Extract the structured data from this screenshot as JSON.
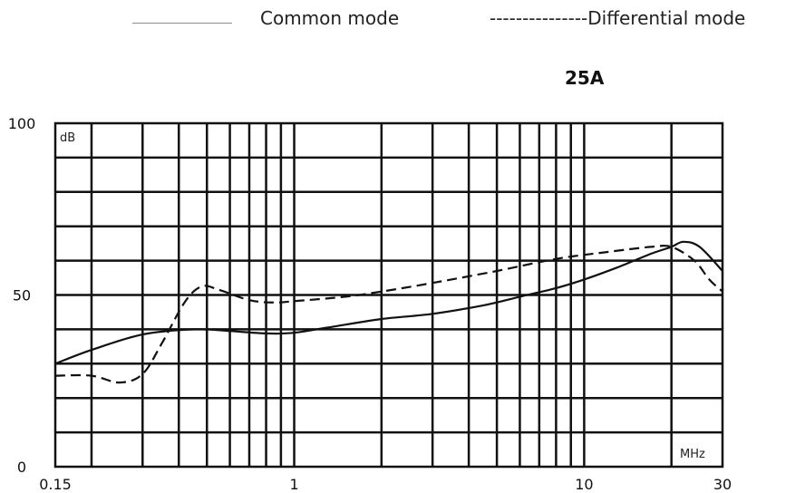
{
  "legend": {
    "common_label": "Common mode",
    "differential_label": "---------------Differential mode"
  },
  "subtitle": "25A",
  "chart_data": {
    "type": "line",
    "title": "25A",
    "x_scale": "log",
    "xlim": [
      0.15,
      30
    ],
    "ylim": [
      0,
      100
    ],
    "x_ticks": [
      0.15,
      1,
      10,
      30
    ],
    "x_tick_labels": [
      "0.15",
      "1",
      "10",
      "30"
    ],
    "y_ticks": [
      0,
      50,
      100
    ],
    "y_tick_labels": [
      "0",
      "50",
      "100"
    ],
    "y_unit": "dB",
    "x_unit": "MHz",
    "grid": true,
    "legend_position": "top",
    "series": [
      {
        "name": "Common mode",
        "style": "solid",
        "color": "#111111",
        "x": [
          0.15,
          0.2,
          0.3,
          0.45,
          0.6,
          0.8,
          1.0,
          1.3,
          2.0,
          3.0,
          4.5,
          6.0,
          8.0,
          10,
          13,
          17,
          20,
          22,
          25,
          30
        ],
        "y": [
          30,
          34,
          38.5,
          40,
          39.5,
          38.8,
          39,
          40.5,
          43,
          44.5,
          47,
          49.5,
          52,
          54.5,
          58,
          62,
          64,
          65.5,
          64,
          57
        ]
      },
      {
        "name": "Differential mode",
        "style": "dashed",
        "color": "#111111",
        "x": [
          0.15,
          0.2,
          0.25,
          0.3,
          0.35,
          0.42,
          0.48,
          0.55,
          0.7,
          0.85,
          1.0,
          1.5,
          2.0,
          3.0,
          5.0,
          8.0,
          12,
          17,
          20,
          24,
          27,
          30
        ],
        "y": [
          26.5,
          26.5,
          24.5,
          27,
          36,
          48,
          52.5,
          51.5,
          48.5,
          47.8,
          48.2,
          49.5,
          51,
          53.5,
          57,
          60.5,
          62.5,
          64,
          64,
          60,
          54.5,
          51
        ]
      }
    ]
  }
}
